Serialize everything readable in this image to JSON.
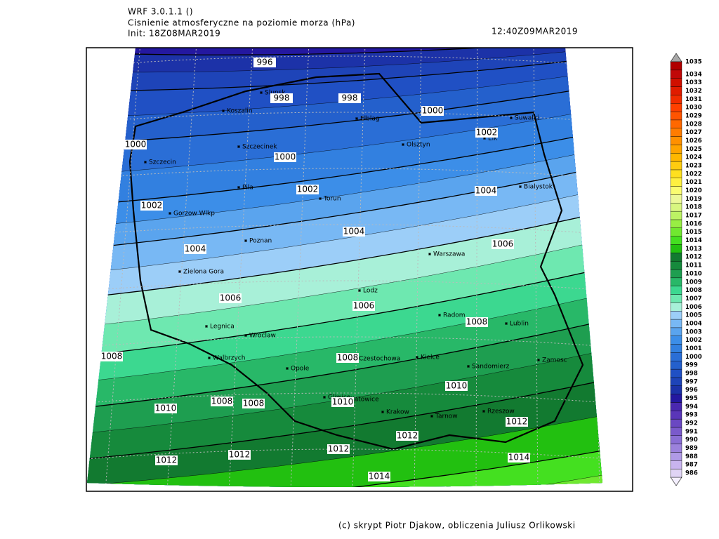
{
  "header": {
    "model": "WRF 3.0.1.1 ()",
    "title": "Cisnienie atmosferyczne na poziomie morza (hPa)",
    "init": "Init: 18Z08MAR2019",
    "valid": "12:40Z09MAR2019"
  },
  "colorbar": {
    "levels": [
      986,
      987,
      988,
      989,
      990,
      991,
      992,
      993,
      994,
      995,
      996,
      997,
      998,
      999,
      1000,
      1001,
      1002,
      1003,
      1004,
      1005,
      1006,
      1007,
      1008,
      1009,
      1010,
      1011,
      1012,
      1013,
      1014,
      1015,
      1016,
      1017,
      1018,
      1019,
      1020,
      1021,
      1022,
      1023,
      1024,
      1025,
      1026,
      1027,
      1028,
      1029,
      1030,
      1031,
      1032,
      1033,
      1034,
      1035
    ],
    "colors": [
      "#e0d4f5",
      "#c8b4ee",
      "#b09ae6",
      "#9c82dc",
      "#8a6ed4",
      "#7a5acb",
      "#6a48c2",
      "#5a36b8",
      "#4a28b0",
      "#2418a0",
      "#1c32a8",
      "#1e44b8",
      "#2050c4",
      "#2460cc",
      "#2a6ed6",
      "#3280e0",
      "#3c8ee8",
      "#5aa4ee",
      "#78b8f4",
      "#9ccef8",
      "#a8f0d8",
      "#6ee8b0",
      "#3cd890",
      "#28b868",
      "#1e9e50",
      "#168a3c",
      "#127a30",
      "#22c010",
      "#44e020",
      "#70e830",
      "#98ee44",
      "#bcf264",
      "#d8f680",
      "#ecf898",
      "#fafc70",
      "#fff040",
      "#ffe020",
      "#ffcc10",
      "#ffb800",
      "#ffa400",
      "#ff9000",
      "#ff7c00",
      "#ff6800",
      "#ff5400",
      "#ff4000",
      "#f02c00",
      "#e01c00",
      "#d01000",
      "#c00808",
      "#b00000"
    ]
  },
  "isobar_labels": [
    996,
    998,
    998,
    1000,
    1000,
    1000,
    1002,
    1002,
    1002,
    1004,
    1004,
    1004,
    1006,
    1006,
    1006,
    1008,
    1008,
    1008,
    1010,
    1008,
    1008,
    1010,
    1010,
    1012,
    1012,
    1012,
    1012,
    1012,
    1014,
    1014
  ],
  "cities": [
    "Slupsk",
    "Koszalin",
    "Elblag",
    "Suwalki",
    "Olsztyn",
    "Elk",
    "Szczecinek",
    "Szczecin",
    "Pila",
    "Torun",
    "Bialystok",
    "Gorzow Wlkp",
    "Poznan",
    "Warszawa",
    "Zielona Gora",
    "Lodz",
    "Radom",
    "Lublin",
    "Legnica",
    "Wroclaw",
    "Walbrzych",
    "Opole",
    "Czestochowa",
    "Kielce",
    "Sandomierz",
    "Zamosc",
    "Gliwice",
    "Katowice",
    "Krakow",
    "Tarnow",
    "Rzeszow"
  ],
  "footer": "(c) skrypt Piotr Djakow, obliczenia Juliusz Orlikowski"
}
